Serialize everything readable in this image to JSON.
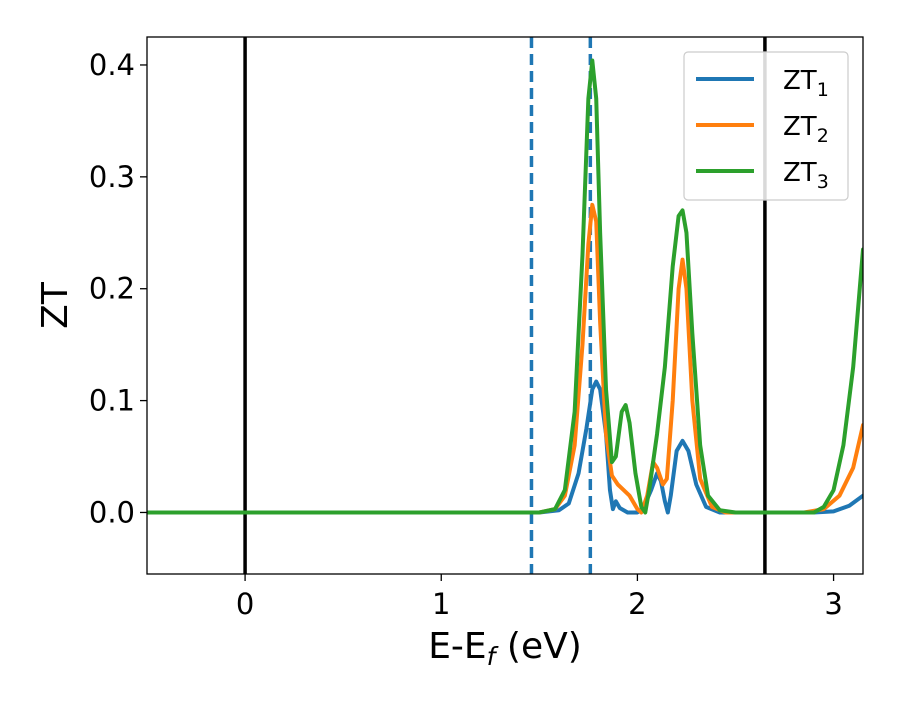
{
  "chart_data": {
    "type": "line",
    "xlabel": {
      "main": "E-E",
      "sub": "f",
      "suffix": " (eV)"
    },
    "ylabel": "ZT",
    "xlim": [
      -0.5,
      3.15
    ],
    "ylim": [
      -0.055,
      0.425
    ],
    "x_ticks": [
      0,
      1,
      2,
      3
    ],
    "x_tick_labels": [
      "0",
      "1",
      "2",
      "3"
    ],
    "y_ticks": [
      0.0,
      0.1,
      0.2,
      0.3,
      0.4
    ],
    "y_tick_labels": [
      "0.0",
      "0.1",
      "0.2",
      "0.3",
      "0.4"
    ],
    "grid": false,
    "legend_position": "upper right",
    "vertical_lines": [
      {
        "x": 0.0,
        "style": "solid",
        "color": "#000000"
      },
      {
        "x": 2.65,
        "style": "solid",
        "color": "#000000"
      },
      {
        "x": 1.46,
        "style": "dashed",
        "color": "#1f77b4"
      },
      {
        "x": 1.76,
        "style": "dashed",
        "color": "#1f77b4"
      }
    ],
    "series": [
      {
        "name": "ZT",
        "name_sub": "1",
        "color": "#1f77b4",
        "points": [
          [
            -0.5,
            0
          ],
          [
            1.5,
            0
          ],
          [
            1.6,
            0.002
          ],
          [
            1.65,
            0.008
          ],
          [
            1.7,
            0.035
          ],
          [
            1.74,
            0.075
          ],
          [
            1.77,
            0.11
          ],
          [
            1.79,
            0.117
          ],
          [
            1.81,
            0.11
          ],
          [
            1.84,
            0.07
          ],
          [
            1.86,
            0.02
          ],
          [
            1.875,
            0.003
          ],
          [
            1.89,
            0.01
          ],
          [
            1.91,
            0.004
          ],
          [
            1.95,
            0
          ],
          [
            2.0,
            0
          ],
          [
            2.03,
            0.004
          ],
          [
            2.07,
            0.02
          ],
          [
            2.1,
            0.035
          ],
          [
            2.12,
            0.028
          ],
          [
            2.14,
            0.01
          ],
          [
            2.155,
            0.0
          ],
          [
            2.17,
            0.015
          ],
          [
            2.2,
            0.055
          ],
          [
            2.23,
            0.064
          ],
          [
            2.26,
            0.055
          ],
          [
            2.3,
            0.025
          ],
          [
            2.35,
            0.005
          ],
          [
            2.42,
            0
          ],
          [
            2.9,
            0
          ],
          [
            3.0,
            0.001
          ],
          [
            3.08,
            0.006
          ],
          [
            3.15,
            0.015
          ]
        ]
      },
      {
        "name": "ZT",
        "name_sub": "2",
        "color": "#ff7f0e",
        "points": [
          [
            -0.5,
            0
          ],
          [
            1.5,
            0
          ],
          [
            1.58,
            0.003
          ],
          [
            1.63,
            0.015
          ],
          [
            1.68,
            0.06
          ],
          [
            1.72,
            0.15
          ],
          [
            1.75,
            0.24
          ],
          [
            1.77,
            0.275
          ],
          [
            1.79,
            0.26
          ],
          [
            1.81,
            0.17
          ],
          [
            1.84,
            0.07
          ],
          [
            1.87,
            0.033
          ],
          [
            1.9,
            0.025
          ],
          [
            1.93,
            0.02
          ],
          [
            1.96,
            0.015
          ],
          [
            2.0,
            0.003
          ],
          [
            2.02,
            0.0
          ],
          [
            2.05,
            0.015
          ],
          [
            2.08,
            0.045
          ],
          [
            2.1,
            0.04
          ],
          [
            2.13,
            0.025
          ],
          [
            2.15,
            0.03
          ],
          [
            2.18,
            0.1
          ],
          [
            2.21,
            0.2
          ],
          [
            2.23,
            0.226
          ],
          [
            2.25,
            0.2
          ],
          [
            2.28,
            0.1
          ],
          [
            2.32,
            0.03
          ],
          [
            2.38,
            0.005
          ],
          [
            2.45,
            0
          ],
          [
            2.85,
            0
          ],
          [
            2.95,
            0.003
          ],
          [
            3.03,
            0.015
          ],
          [
            3.1,
            0.04
          ],
          [
            3.15,
            0.078
          ]
        ]
      },
      {
        "name": "ZT",
        "name_sub": "3",
        "color": "#2ca02c",
        "points": [
          [
            -0.5,
            0
          ],
          [
            1.5,
            0
          ],
          [
            1.58,
            0.003
          ],
          [
            1.63,
            0.02
          ],
          [
            1.68,
            0.09
          ],
          [
            1.72,
            0.23
          ],
          [
            1.75,
            0.37
          ],
          [
            1.77,
            0.404
          ],
          [
            1.79,
            0.37
          ],
          [
            1.81,
            0.25
          ],
          [
            1.84,
            0.11
          ],
          [
            1.87,
            0.045
          ],
          [
            1.89,
            0.05
          ],
          [
            1.92,
            0.09
          ],
          [
            1.94,
            0.096
          ],
          [
            1.96,
            0.08
          ],
          [
            1.99,
            0.035
          ],
          [
            2.02,
            0.005
          ],
          [
            2.04,
            0.0
          ],
          [
            2.06,
            0.02
          ],
          [
            2.1,
            0.07
          ],
          [
            2.14,
            0.13
          ],
          [
            2.18,
            0.22
          ],
          [
            2.21,
            0.265
          ],
          [
            2.23,
            0.27
          ],
          [
            2.25,
            0.25
          ],
          [
            2.28,
            0.16
          ],
          [
            2.32,
            0.06
          ],
          [
            2.36,
            0.015
          ],
          [
            2.42,
            0.002
          ],
          [
            2.5,
            0
          ],
          [
            2.9,
            0
          ],
          [
            2.95,
            0.005
          ],
          [
            3.0,
            0.02
          ],
          [
            3.05,
            0.06
          ],
          [
            3.1,
            0.13
          ],
          [
            3.15,
            0.235
          ]
        ]
      }
    ]
  }
}
